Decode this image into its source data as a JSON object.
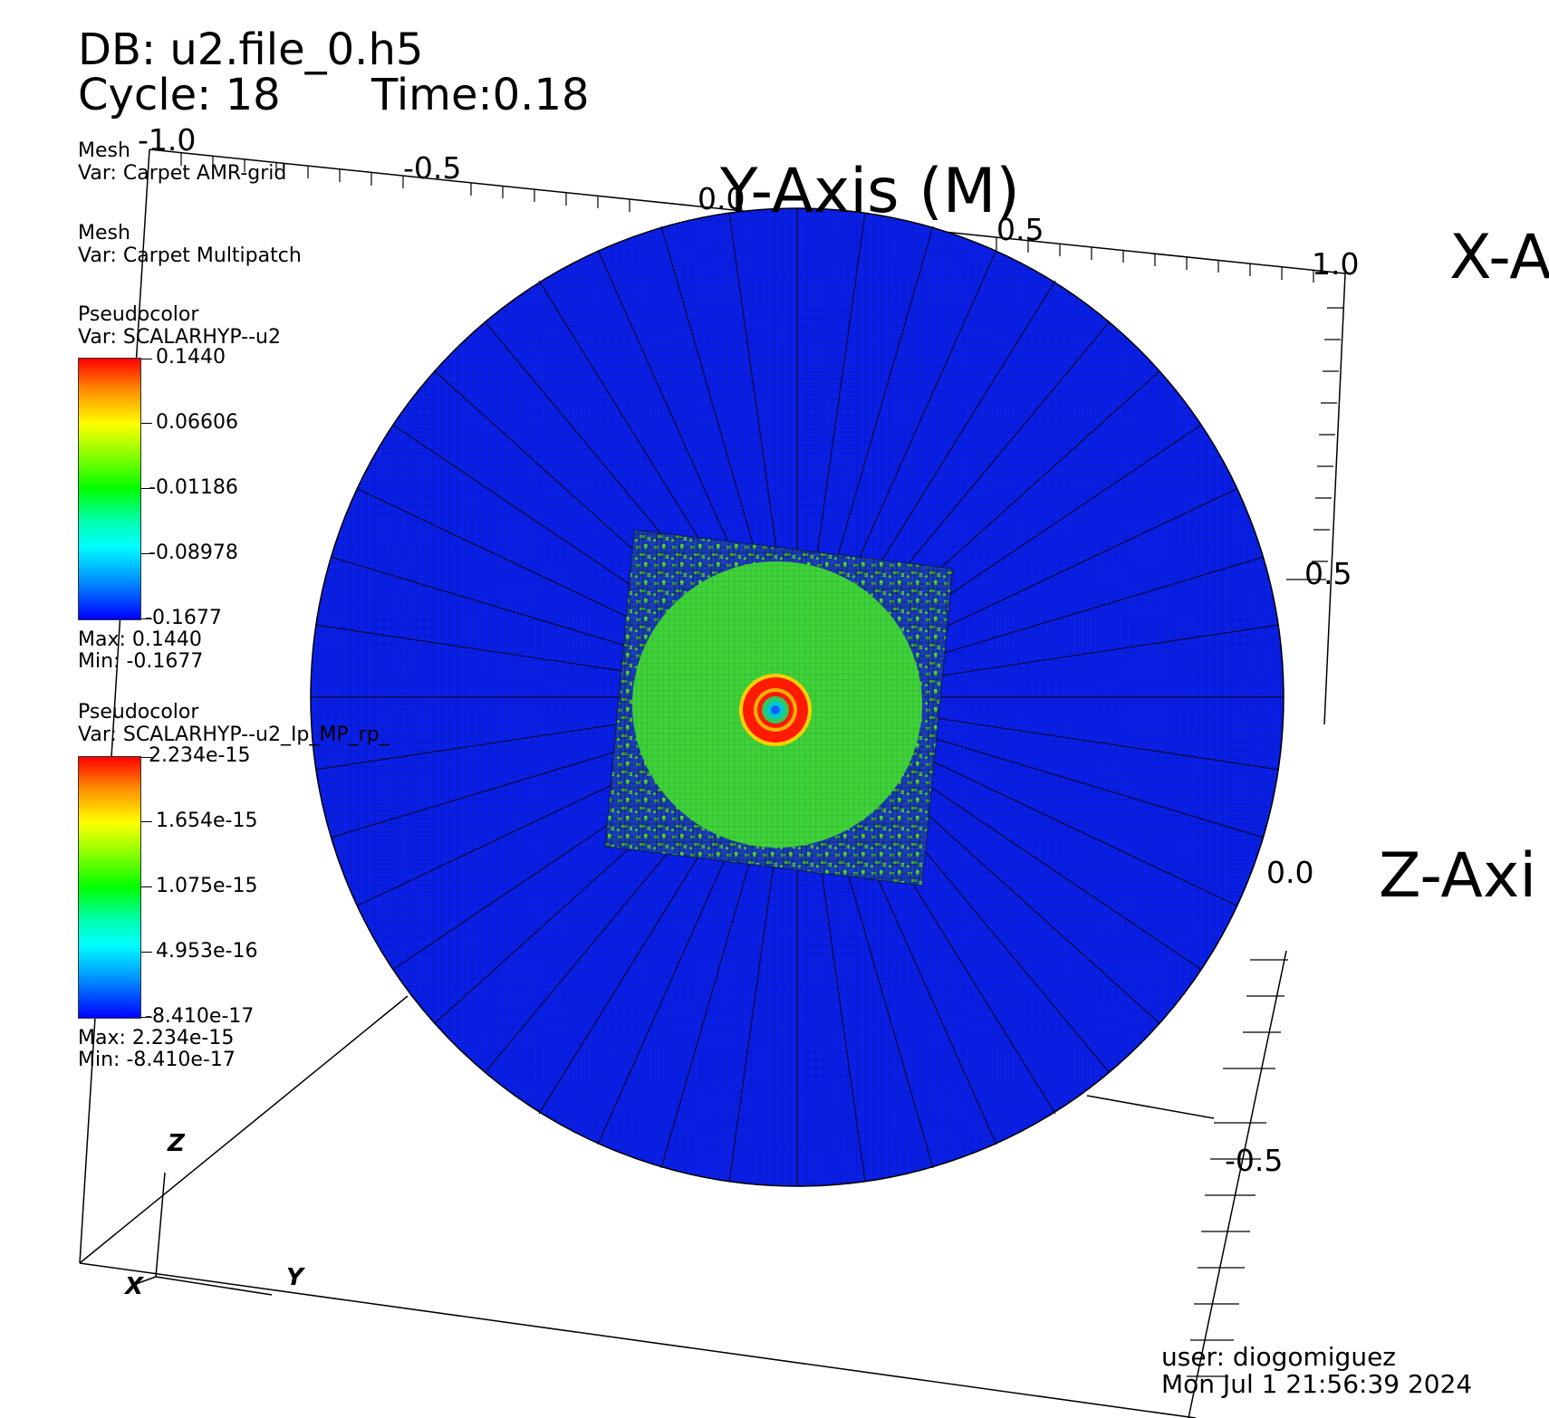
{
  "header": {
    "db": "DB: u2.file_0.h5",
    "cycle": "Cycle: 18",
    "time": "Time:0.18"
  },
  "legends": [
    {
      "title": "Mesh",
      "var": "Var: Carpet AMR-grid"
    },
    {
      "title": "Mesh",
      "var": "Var: Carpet Multipatch"
    },
    {
      "title": "Pseudocolor",
      "var": "Var: SCALARHYP--u2",
      "ticks": [
        "0.1440",
        "0.06606",
        "-0.01186",
        "-0.08978",
        "-0.1677"
      ],
      "max": "Max:  0.1440",
      "min": "Min: -0.1677"
    },
    {
      "title": "Pseudocolor",
      "var": "Var: SCALARHYP--u2_Ip_MP_rp_",
      "ticks": [
        "2.234e-15",
        "1.654e-15",
        "1.075e-15",
        "4.953e-16",
        "-8.410e-17"
      ],
      "max": "Max:  2.234e-15",
      "min": "Min: -8.410e-17"
    }
  ],
  "axes": {
    "y_title": "Y-Axis (M)",
    "x_title": "X-A",
    "z_title": "Z-Axi",
    "y_ticks": [
      "-1.0",
      "-0.5",
      "0.0",
      "0.5",
      "1.0"
    ],
    "z_ticks": [
      "0.5",
      "0.0",
      "-0.5"
    ],
    "x_cluster": "1.0"
  },
  "triad": {
    "x": "X",
    "y": "Y",
    "z": "Z"
  },
  "footer": {
    "user": "user: diogomiguez",
    "date": "Mon Jul  1 21:56:39 2024"
  },
  "colors": {
    "outer_disk": "#0a1fe6",
    "inner_disk": "#3fd23a",
    "ring_red": "#ff1a00",
    "ring_yellow": "#ffd000",
    "center_cyan": "#00c8c8",
    "amr_square": "#1a3aa0"
  }
}
